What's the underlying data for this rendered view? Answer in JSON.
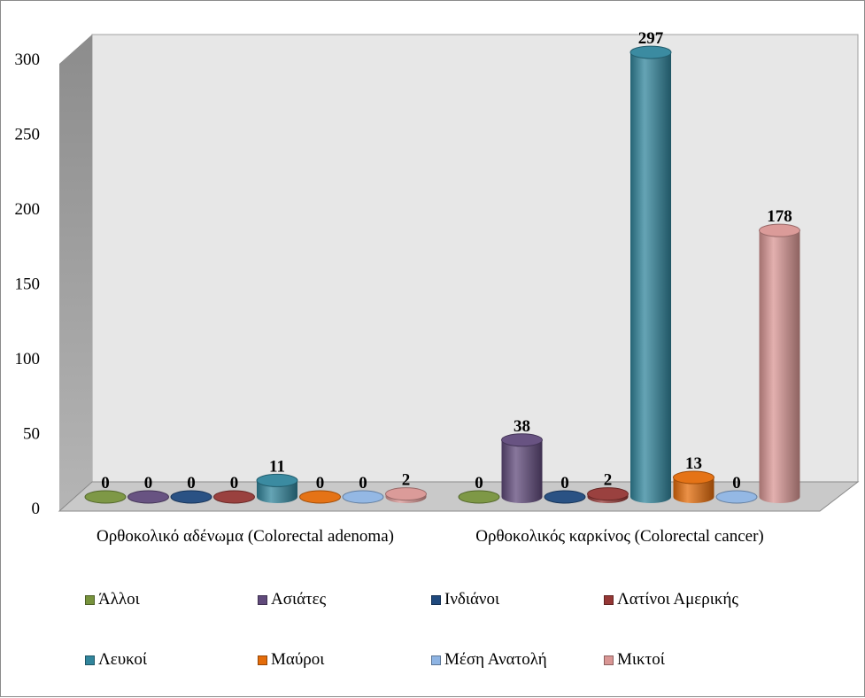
{
  "chart_data": {
    "type": "bar",
    "title": "",
    "xlabel": "",
    "ylabel": "",
    "ylim": [
      0,
      300
    ],
    "yticks": [
      "0",
      "50",
      "100",
      "150",
      "200",
      "250",
      "300"
    ],
    "categories": [
      "Ορθοκολικό αδένωμα (Colorectal adenoma)",
      "Ορθοκολικός καρκίνος (Colorectal cancer)"
    ],
    "series": [
      {
        "name": "Άλλοι",
        "values": [
          0,
          0
        ],
        "color": "#77933c"
      },
      {
        "name": "Ασιάτες",
        "values": [
          0,
          38
        ],
        "color": "#604a7b"
      },
      {
        "name": "Ινδιάνοι",
        "values": [
          0,
          0
        ],
        "color": "#1f497d"
      },
      {
        "name": "Λατίνοι Αμερικής",
        "values": [
          0,
          2
        ],
        "color": "#953735"
      },
      {
        "name": "Λευκοί",
        "values": [
          11,
          297
        ],
        "color": "#31859c"
      },
      {
        "name": "Μαύροι",
        "values": [
          0,
          13
        ],
        "color": "#e46c0a"
      },
      {
        "name": "Μέση Ανατολή",
        "values": [
          0,
          0
        ],
        "color": "#8eb4e3"
      },
      {
        "name": "Μικτοί",
        "values": [
          2,
          178
        ],
        "color": "#d99694"
      }
    ],
    "data_labels": [
      [
        "0",
        "0",
        "0",
        "0",
        "11",
        "0",
        "0",
        "2"
      ],
      [
        "0",
        "38",
        "0",
        "2",
        "297",
        "13",
        "0",
        "178"
      ]
    ],
    "legend": "bottom",
    "grid": false
  }
}
